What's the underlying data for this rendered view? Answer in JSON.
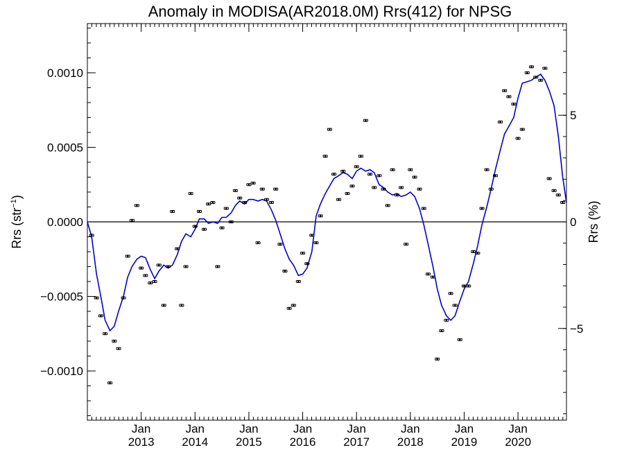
{
  "chart_data": {
    "type": "scatter",
    "title": "Anomaly in MODISA(AR2018.0M) Rrs(412) for NPSG",
    "ylabel": "Rrs (str",
    "ylabel_sup": "−1",
    "ylabel_close": ")",
    "y2label": "Rrs (%)",
    "xlabel": "",
    "xlim": [
      2012.0,
      2020.9
    ],
    "ylim": [
      -0.00133,
      0.00133
    ],
    "y2lim": [
      -9.3,
      9.3
    ],
    "grid": false,
    "legend": "none",
    "zero_line": true,
    "y_ticks": [
      {
        "value": 0.001,
        "label": "0.0010"
      },
      {
        "value": 0.0005,
        "label": "0.0005"
      },
      {
        "value": 0.0,
        "label": "0.0000"
      },
      {
        "value": -0.0005,
        "label": "−0.0005"
      },
      {
        "value": -0.001,
        "label": "−0.0010"
      }
    ],
    "y2_ticks": [
      {
        "value": 5,
        "label": "5"
      },
      {
        "value": 0,
        "label": "0"
      },
      {
        "value": -5,
        "label": "−5"
      }
    ],
    "x_ticks": [
      {
        "value": 2013.0,
        "label": "Jan",
        "year": "2013"
      },
      {
        "value": 2014.0,
        "label": "Jan",
        "year": "2014"
      },
      {
        "value": 2015.0,
        "label": "Jan",
        "year": "2015"
      },
      {
        "value": 2016.0,
        "label": "Jan",
        "year": "2016"
      },
      {
        "value": 2017.0,
        "label": "Jan",
        "year": "2017"
      },
      {
        "value": 2018.0,
        "label": "Jan",
        "year": "2018"
      },
      {
        "value": 2019.0,
        "label": "Jan",
        "year": "2019"
      },
      {
        "value": 2020.0,
        "label": "Jan",
        "year": "2020"
      }
    ],
    "series": [
      {
        "kind": "points",
        "color": "#000000",
        "x": [
          2012.08,
          2012.17,
          2012.25,
          2012.33,
          2012.42,
          2012.5,
          2012.58,
          2012.67,
          2012.75,
          2012.83,
          2012.92,
          2013.0,
          2013.08,
          2013.17,
          2013.25,
          2013.33,
          2013.42,
          2013.5,
          2013.58,
          2013.67,
          2013.75,
          2013.83,
          2013.92,
          2014.0,
          2014.08,
          2014.17,
          2014.25,
          2014.33,
          2014.42,
          2014.5,
          2014.58,
          2014.67,
          2014.75,
          2014.83,
          2014.92,
          2015.0,
          2015.08,
          2015.17,
          2015.25,
          2015.33,
          2015.42,
          2015.5,
          2015.58,
          2015.67,
          2015.75,
          2015.83,
          2015.92,
          2016.0,
          2016.08,
          2016.17,
          2016.25,
          2016.33,
          2016.42,
          2016.5,
          2016.58,
          2016.67,
          2016.75,
          2016.83,
          2016.92,
          2017.0,
          2017.08,
          2017.17,
          2017.25,
          2017.33,
          2017.42,
          2017.5,
          2017.58,
          2017.67,
          2017.75,
          2017.83,
          2017.92,
          2018.0,
          2018.08,
          2018.17,
          2018.25,
          2018.33,
          2018.42,
          2018.5,
          2018.58,
          2018.67,
          2018.75,
          2018.83,
          2018.92,
          2019.0,
          2019.08,
          2019.17,
          2019.25,
          2019.33,
          2019.42,
          2019.5,
          2019.58,
          2019.67,
          2019.75,
          2019.83,
          2019.92,
          2020.0,
          2020.08,
          2020.17,
          2020.25,
          2020.33,
          2020.42,
          2020.5,
          2020.58,
          2020.67,
          2020.75,
          2020.83
        ],
        "y": [
          -9e-05,
          -0.00051,
          -0.00063,
          -0.00075,
          -0.00108,
          -0.0008,
          -0.00085,
          -0.00051,
          -0.00023,
          1e-05,
          0.00011,
          -0.00031,
          -0.00036,
          -0.00041,
          -0.0004,
          -0.00029,
          -0.00056,
          -0.0003,
          7e-05,
          -0.00018,
          -0.00056,
          -0.0003,
          0.00019,
          -3e-05,
          7e-05,
          -5e-05,
          0.00012,
          0.00013,
          -0.0003,
          -4e-05,
          9e-05,
          0.0,
          0.00021,
          0.00016,
          0.00013,
          0.00025,
          0.00026,
          -0.00014,
          0.00022,
          0.00015,
          0.00013,
          0.00022,
          -0.00015,
          -0.00033,
          -0.00058,
          -0.00056,
          -0.0004,
          -0.00021,
          -0.00028,
          -9e-05,
          -0.00014,
          4e-05,
          0.00044,
          0.00062,
          0.00032,
          0.00015,
          0.00034,
          0.00019,
          0.00024,
          0.00037,
          0.00044,
          0.00068,
          0.00032,
          0.00023,
          0.00031,
          0.00022,
          0.00011,
          0.00035,
          0.00018,
          0.00023,
          -0.00015,
          0.00035,
          0.0003,
          0.00022,
          9e-05,
          -0.00035,
          -0.00037,
          -0.00092,
          -0.00073,
          -0.00066,
          -0.00048,
          -0.00056,
          -0.00079,
          -0.00043,
          -0.00043,
          -0.0002,
          -0.00021,
          9e-05,
          0.00035,
          0.00022,
          0.00031,
          0.00067,
          0.00088,
          0.00084,
          0.00079,
          0.00056,
          0.00062,
          0.001,
          0.00104,
          0.00097,
          0.00095,
          0.00103,
          0.00029,
          0.00021,
          0.00018,
          0.00013
        ]
      },
      {
        "kind": "line",
        "color": "#0000cc",
        "x": [
          2012.0,
          2012.08,
          2012.17,
          2012.25,
          2012.33,
          2012.42,
          2012.5,
          2012.58,
          2012.67,
          2012.75,
          2012.83,
          2012.92,
          2013.0,
          2013.08,
          2013.17,
          2013.25,
          2013.33,
          2013.42,
          2013.5,
          2013.58,
          2013.67,
          2013.75,
          2013.83,
          2013.92,
          2014.0,
          2014.08,
          2014.17,
          2014.25,
          2014.33,
          2014.42,
          2014.5,
          2014.58,
          2014.67,
          2014.75,
          2014.83,
          2014.92,
          2015.0,
          2015.08,
          2015.17,
          2015.25,
          2015.33,
          2015.42,
          2015.5,
          2015.58,
          2015.67,
          2015.75,
          2015.83,
          2015.92,
          2016.0,
          2016.08,
          2016.17,
          2016.25,
          2016.33,
          2016.42,
          2016.5,
          2016.58,
          2016.67,
          2016.75,
          2016.83,
          2016.92,
          2017.0,
          2017.08,
          2017.17,
          2017.25,
          2017.33,
          2017.42,
          2017.5,
          2017.58,
          2017.67,
          2017.75,
          2017.83,
          2017.92,
          2018.0,
          2018.08,
          2018.17,
          2018.25,
          2018.33,
          2018.42,
          2018.5,
          2018.58,
          2018.67,
          2018.75,
          2018.83,
          2018.92,
          2019.0,
          2019.08,
          2019.17,
          2019.25,
          2019.33,
          2019.42,
          2019.5,
          2019.58,
          2019.67,
          2019.75,
          2019.83,
          2019.92,
          2020.0,
          2020.08,
          2020.17,
          2020.25,
          2020.33,
          2020.42,
          2020.5,
          2020.58,
          2020.67,
          2020.75,
          2020.83,
          2020.9
        ],
        "y": [
          0.0,
          -0.0001,
          -0.00035,
          -0.0005,
          -0.00066,
          -0.00073,
          -0.0007,
          -0.0006,
          -0.0005,
          -0.00037,
          -0.0003,
          -0.00025,
          -0.00023,
          -0.00024,
          -0.00032,
          -0.00038,
          -0.00033,
          -0.00029,
          -0.00031,
          -0.00029,
          -0.00022,
          -0.00013,
          -8e-05,
          -0.0001,
          -5e-05,
          2e-05,
          2e-05,
          -1e-05,
          0.0,
          -1e-05,
          3e-05,
          3e-05,
          6e-05,
          0.00011,
          0.00014,
          0.00012,
          0.00015,
          0.00015,
          0.00014,
          0.00015,
          0.00014,
          8e-05,
          1e-05,
          -8e-05,
          -0.00018,
          -0.00025,
          -0.00029,
          -0.00036,
          -0.00035,
          -0.00031,
          -0.0002,
          4e-05,
          0.00012,
          0.00019,
          0.00024,
          0.00029,
          0.00031,
          0.00033,
          0.00032,
          0.00029,
          0.00034,
          0.00036,
          0.00034,
          0.00035,
          0.00033,
          0.00025,
          0.00023,
          0.0002,
          0.00018,
          0.00019,
          0.00017,
          0.00018,
          0.0002,
          0.00017,
          9e-05,
          -2e-05,
          -0.00015,
          -0.0003,
          -0.00045,
          -0.00056,
          -0.00063,
          -0.00066,
          -0.00063,
          -0.00053,
          -0.00045,
          -0.0004,
          -0.00028,
          -0.00016,
          -2e-05,
          0.0001,
          0.00022,
          0.00035,
          0.00048,
          0.00059,
          0.00064,
          0.0007,
          0.00083,
          0.00093,
          0.00094,
          0.00095,
          0.00097,
          0.00099,
          0.00095,
          0.00088,
          0.00078,
          0.00057,
          0.0003,
          0.00013
        ]
      }
    ]
  }
}
